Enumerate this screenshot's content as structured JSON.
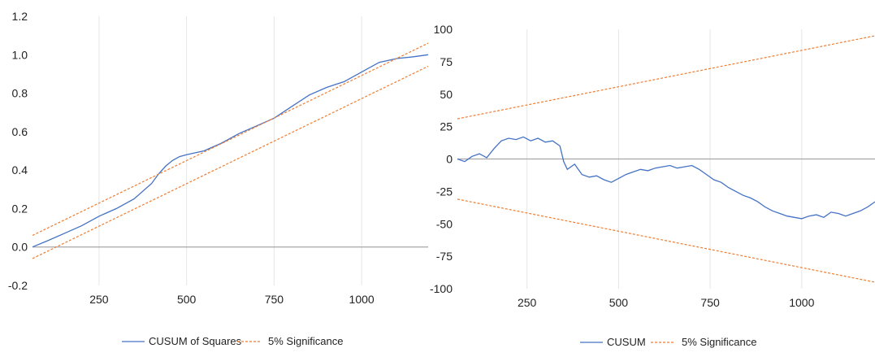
{
  "chart_data": [
    {
      "type": "line",
      "title": "",
      "xlabel": "",
      "ylabel": "",
      "xlim": [
        60,
        1190
      ],
      "ylim": [
        -0.2,
        1.2
      ],
      "x_ticks": [
        250,
        500,
        750,
        1000
      ],
      "x_tick_labels": [
        "250",
        "500",
        "750",
        "1000"
      ],
      "y_ticks": [
        -0.2,
        0.0,
        0.2,
        0.4,
        0.6,
        0.8,
        1.0,
        1.2
      ],
      "y_tick_labels": [
        "-0.2",
        "0.0",
        "0.2",
        "0.4",
        "0.6",
        "0.8",
        "1.0",
        "1.2"
      ],
      "grid": "vertical",
      "legend_position": "bottom",
      "series": [
        {
          "name": "CUSUM of Squares",
          "color": "#4472c4",
          "style": "solid",
          "x": [
            60,
            100,
            150,
            200,
            250,
            300,
            350,
            400,
            420,
            440,
            460,
            480,
            500,
            550,
            600,
            650,
            700,
            750,
            800,
            850,
            900,
            950,
            1000,
            1050,
            1100,
            1150,
            1190
          ],
          "y": [
            0.0,
            0.03,
            0.07,
            0.11,
            0.16,
            0.2,
            0.25,
            0.33,
            0.38,
            0.42,
            0.45,
            0.47,
            0.48,
            0.5,
            0.54,
            0.59,
            0.63,
            0.67,
            0.73,
            0.79,
            0.83,
            0.86,
            0.91,
            0.96,
            0.98,
            0.99,
            1.0
          ]
        },
        {
          "name": "5% Significance",
          "color": "#ed7d31",
          "style": "dashed",
          "x": [
            60,
            1190
          ],
          "y": [
            0.06,
            1.06
          ]
        },
        {
          "name": "",
          "color": "#ed7d31",
          "style": "dashed",
          "x": [
            60,
            1190
          ],
          "y": [
            -0.06,
            0.94
          ]
        }
      ]
    },
    {
      "type": "line",
      "title": "",
      "xlabel": "",
      "ylabel": "",
      "xlim": [
        60,
        1200
      ],
      "ylim": [
        -100,
        100
      ],
      "x_ticks": [
        250,
        500,
        750,
        1000
      ],
      "x_tick_labels": [
        "250",
        "500",
        "750",
        "1000"
      ],
      "y_ticks": [
        -100,
        -75,
        -50,
        -25,
        0,
        25,
        50,
        75,
        100
      ],
      "y_tick_labels": [
        "-100",
        "-75",
        "-50",
        "-25",
        "0",
        "25",
        "50",
        "75",
        "100"
      ],
      "grid": "vertical",
      "legend_position": "bottom",
      "series": [
        {
          "name": "CUSUM",
          "color": "#4472c4",
          "style": "solid",
          "x": [
            60,
            80,
            100,
            120,
            140,
            160,
            180,
            200,
            220,
            240,
            260,
            280,
            300,
            320,
            340,
            350,
            360,
            380,
            400,
            420,
            440,
            460,
            480,
            500,
            520,
            540,
            560,
            580,
            600,
            620,
            640,
            660,
            680,
            700,
            720,
            740,
            760,
            780,
            800,
            820,
            840,
            860,
            880,
            900,
            920,
            940,
            960,
            980,
            1000,
            1020,
            1040,
            1060,
            1080,
            1100,
            1120,
            1140,
            1160,
            1180,
            1200
          ],
          "y": [
            0,
            -2,
            2,
            4,
            1,
            8,
            14,
            16,
            15,
            17,
            14,
            16,
            13,
            14,
            10,
            -2,
            -8,
            -4,
            -12,
            -14,
            -13,
            -16,
            -18,
            -15,
            -12,
            -10,
            -8,
            -9,
            -7,
            -6,
            -5,
            -7,
            -6,
            -5,
            -8,
            -12,
            -16,
            -18,
            -22,
            -25,
            -28,
            -30,
            -33,
            -37,
            -40,
            -42,
            -44,
            -45,
            -46,
            -44,
            -43,
            -45,
            -41,
            -42,
            -44,
            -42,
            -40,
            -37,
            -33
          ]
        },
        {
          "name": "5% Significance",
          "color": "#ed7d31",
          "style": "dashed",
          "x": [
            60,
            1200
          ],
          "y": [
            31,
            95
          ]
        },
        {
          "name": "",
          "color": "#ed7d31",
          "style": "dashed",
          "x": [
            60,
            1200
          ],
          "y": [
            -31,
            -95
          ]
        }
      ]
    }
  ]
}
